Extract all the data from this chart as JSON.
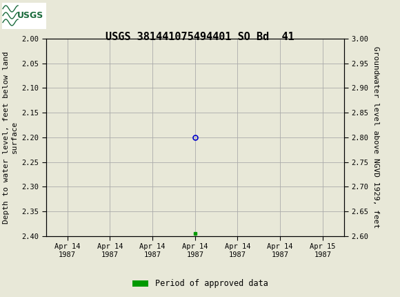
{
  "title": "USGS 381441075494401 SO Bd  41",
  "ylabel_left": "Depth to water level, feet below land\nsurface",
  "ylabel_right": "Groundwater level above NGVD 1929, feet",
  "ylim_left": [
    2.4,
    2.0
  ],
  "ylim_right": [
    2.6,
    3.0
  ],
  "yticks_left": [
    2.0,
    2.05,
    2.1,
    2.15,
    2.2,
    2.25,
    2.3,
    2.35,
    2.4
  ],
  "yticks_right": [
    3.0,
    2.95,
    2.9,
    2.85,
    2.8,
    2.75,
    2.7,
    2.65,
    2.6
  ],
  "header_color": "#1a6b3c",
  "bg_color": "#e8e8d8",
  "plot_bg_color": "#e8e8d8",
  "grid_color": "#aaaaaa",
  "data_point_x": 3.0,
  "data_point_y": 2.2,
  "data_point_color": "#0000cc",
  "data_point_markersize": 5,
  "segment_x": 3.0,
  "segment_y": 2.395,
  "segment_color": "#009900",
  "legend_label": "Period of approved data",
  "legend_color": "#009900",
  "xtick_labels": [
    "Apr 14\n1987",
    "Apr 14\n1987",
    "Apr 14\n1987",
    "Apr 14\n1987",
    "Apr 14\n1987",
    "Apr 14\n1987",
    "Apr 15\n1987"
  ],
  "xtick_positions": [
    0,
    1,
    2,
    3,
    4,
    5,
    6
  ],
  "xlim": [
    -0.5,
    6.5
  ],
  "font_family": "monospace",
  "title_fontsize": 11,
  "axis_label_fontsize": 8,
  "tick_fontsize": 7.5
}
